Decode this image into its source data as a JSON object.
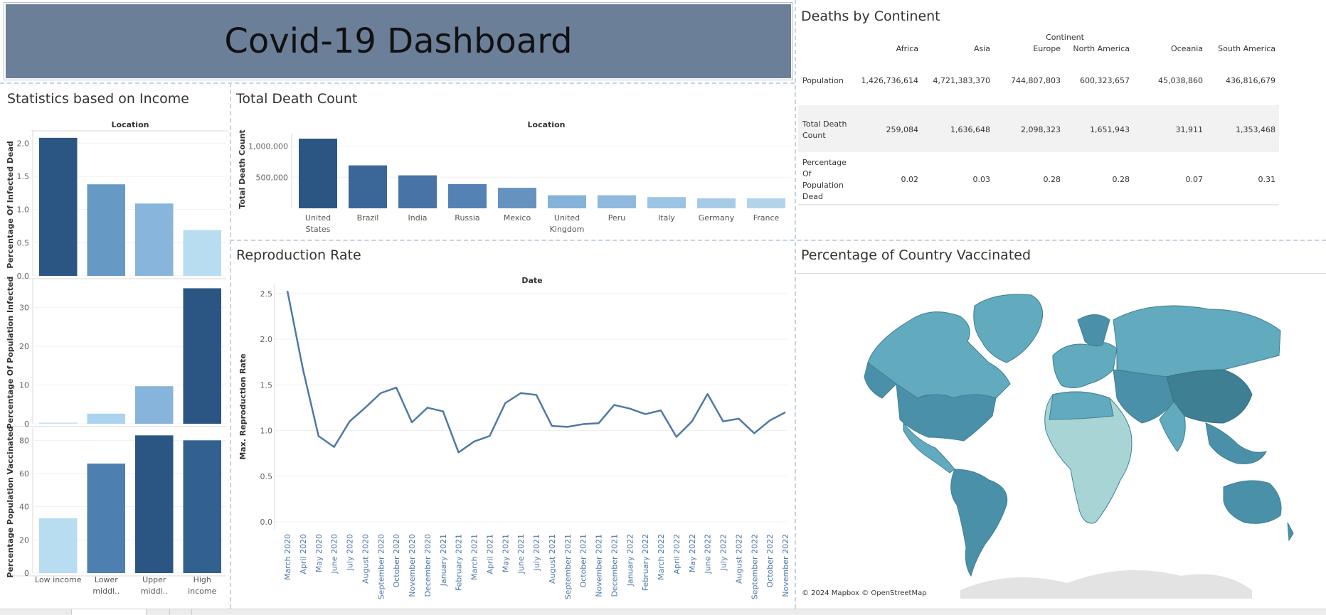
{
  "dashboard": {
    "title": "Covid-19 Dashboard"
  },
  "income_panel": {
    "title": "Statistics based on Income",
    "header": "Location",
    "categories": [
      [
        "Low income"
      ],
      [
        "Lower",
        "middl.."
      ],
      [
        "Upper",
        "middl.."
      ],
      [
        "High",
        "income"
      ]
    ],
    "charts": [
      {
        "ylabel": "Percentage Of Infected Dead",
        "ymax": 2.0,
        "ticks": [
          "2.0",
          "1.5",
          "1.0",
          "0.5",
          "0.0"
        ],
        "tick_values": [
          2.0,
          1.5,
          1.0,
          0.5,
          0.0
        ],
        "values": [
          2.08,
          1.38,
          1.09,
          0.69
        ],
        "colors": [
          "#2b5683",
          "#6699c4",
          "#87b5db",
          "#b8dcf0"
        ]
      },
      {
        "ylabel": "Percentage Of Population Infected",
        "ymax": 30,
        "ticks": [
          "30",
          "20",
          "10",
          "0"
        ],
        "tick_values": [
          30,
          20,
          10,
          0
        ],
        "values": [
          0.3,
          2.6,
          9.7,
          35
        ],
        "colors": [
          "#c6e3f4",
          "#a9d3ee",
          "#86b4da",
          "#2b5683"
        ]
      },
      {
        "ylabel": "Percentage Population Vaccinated",
        "ymax": 80,
        "ticks": [
          "80",
          "60",
          "40",
          "20",
          "0"
        ],
        "tick_values": [
          80,
          60,
          40,
          20,
          0
        ],
        "values": [
          33,
          66,
          83,
          80
        ],
        "colors": [
          "#b8dcf0",
          "#4d7fb0",
          "#2b5683",
          "#32608f"
        ]
      }
    ]
  },
  "death_panel": {
    "title": "Total Death Count",
    "header": "Location",
    "ylabel": "Total Death Count",
    "ticks": [
      "1,000,000",
      "500,000"
    ],
    "tick_values": [
      1000000,
      500000
    ],
    "categories": [
      [
        "United",
        "States"
      ],
      [
        "Brazil"
      ],
      [
        "India"
      ],
      [
        "Russia"
      ],
      [
        "Mexico"
      ],
      [
        "United",
        "Kingdom"
      ],
      [
        "Peru"
      ],
      [
        "Italy"
      ],
      [
        "Germany"
      ],
      [
        "France"
      ]
    ],
    "values": [
      1120000,
      690000,
      530000,
      390000,
      330000,
      210000,
      210000,
      180000,
      160000,
      160000
    ],
    "colors": [
      "#2b5683",
      "#3a6797",
      "#4773a6",
      "#5582b4",
      "#6692c0",
      "#85b2d9",
      "#8fbade",
      "#9bc3e3",
      "#a6cbe7",
      "#b3d3eb"
    ]
  },
  "continent_panel": {
    "title": "Deaths by Continent",
    "header": "Continent",
    "columns": [
      "Africa",
      "Asia",
      "Europe",
      "North America",
      "Oceania",
      "South America"
    ],
    "rows": [
      {
        "label": [
          "Population"
        ],
        "values": [
          "1,426,736,614",
          "4,721,383,370",
          "744,807,803",
          "600,323,657",
          "45,038,860",
          "436,816,679"
        ]
      },
      {
        "label": [
          "Total Death",
          "Count"
        ],
        "values": [
          "259,084",
          "1,636,648",
          "2,098,323",
          "1,651,943",
          "31,911",
          "1,353,468"
        ]
      },
      {
        "label": [
          "Percentage",
          "Of",
          "Population",
          "Dead"
        ],
        "values": [
          "0.02",
          "0.03",
          "0.28",
          "0.28",
          "0.07",
          "0.31"
        ]
      }
    ]
  },
  "repro_panel": {
    "title": "Reproduction Rate",
    "header": "Date",
    "ylabel": "Max. Reproduction Rate",
    "ticks": [
      "2.5",
      "2.0",
      "1.5",
      "1.0",
      "0.5",
      "0.0"
    ],
    "tick_values": [
      2.5,
      2.0,
      1.5,
      1.0,
      0.5,
      0.0
    ],
    "line_color": "#4e79a7"
  },
  "chart_data": {
    "type": "line",
    "x": [
      "March 2020",
      "April 2020",
      "May 2020",
      "June 2020",
      "July 2020",
      "August 2020",
      "September 2020",
      "October 2020",
      "November 2020",
      "December 2020",
      "January 2021",
      "February 2021",
      "March 2021",
      "April 2021",
      "May 2021",
      "June 2021",
      "July 2021",
      "August 2021",
      "September 2021",
      "October 2021",
      "November 2021",
      "December 2021",
      "January 2022",
      "February 2022",
      "March 2022",
      "April 2022",
      "May 2022",
      "June 2022",
      "July 2022",
      "August 2022",
      "September 2022",
      "October 2022",
      "November 2022"
    ],
    "values": [
      2.53,
      1.67,
      0.94,
      0.82,
      1.1,
      1.25,
      1.41,
      1.47,
      1.09,
      1.25,
      1.21,
      0.76,
      0.88,
      0.94,
      1.3,
      1.41,
      1.39,
      1.05,
      1.04,
      1.07,
      1.08,
      1.28,
      1.24,
      1.18,
      1.22,
      0.93,
      1.1,
      1.4,
      1.1,
      1.13,
      0.97,
      1.11,
      1.2
    ],
    "ylim": [
      0,
      2.6
    ]
  },
  "map_panel": {
    "title": "Percentage of Country Vaccinated",
    "attribution": "© 2024 Mapbox © OpenStreetMap",
    "colors": {
      "high": "#4a90a8",
      "mid": "#62aabe",
      "low": "#a8d4d6",
      "land_gray": "#d9d9d9"
    }
  }
}
